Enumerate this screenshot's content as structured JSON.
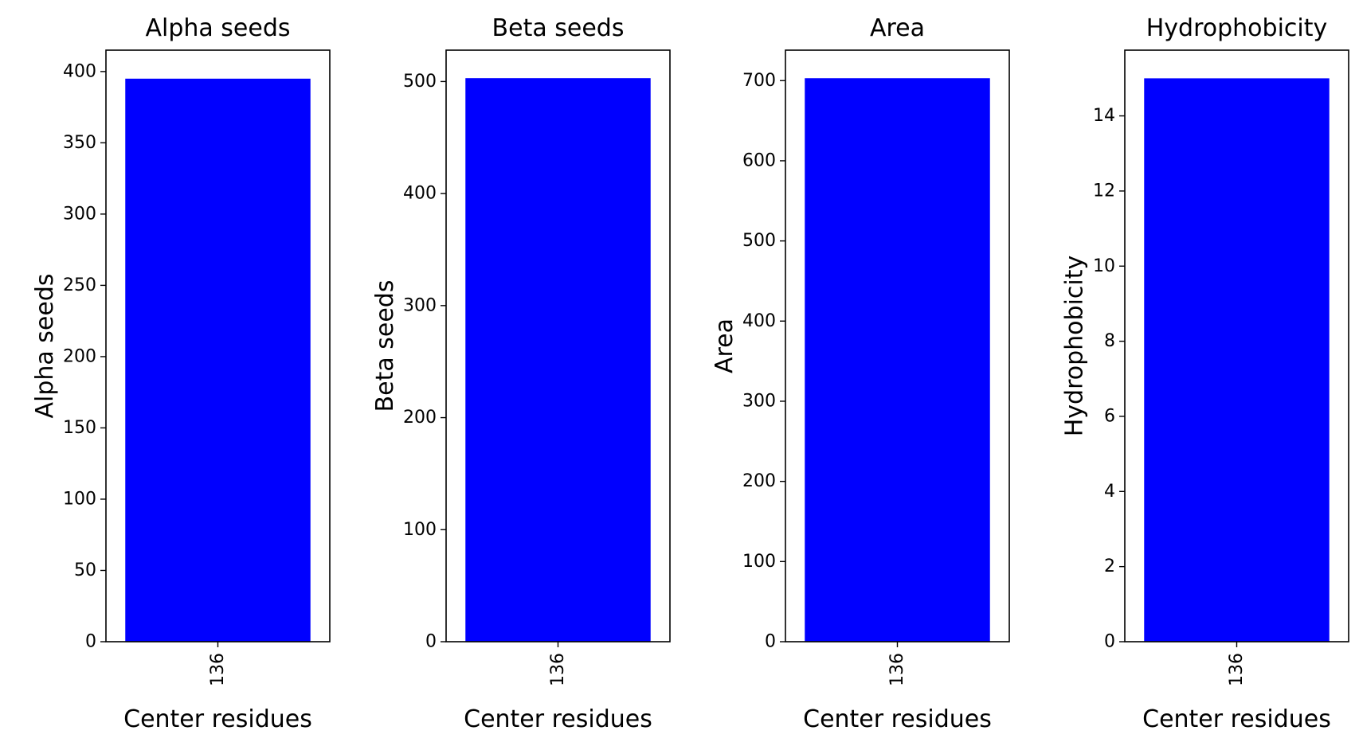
{
  "chart_data": [
    {
      "type": "bar",
      "title": "Alpha seeds",
      "xlabel": "Center residues",
      "ylabel": "Alpha seeds",
      "categories": [
        "136"
      ],
      "values": [
        395
      ],
      "ylim": [
        0,
        415
      ],
      "yticks": [
        0,
        50,
        100,
        150,
        200,
        250,
        300,
        350,
        400
      ],
      "ytick_labels": [
        "0",
        "50",
        "100",
        "150",
        "200",
        "250",
        "300",
        "350",
        "400"
      ],
      "grid": false
    },
    {
      "type": "bar",
      "title": "Beta seeds",
      "xlabel": "Center residues",
      "ylabel": "Beta seeds",
      "categories": [
        "136"
      ],
      "values": [
        503
      ],
      "ylim": [
        0,
        528
      ],
      "yticks": [
        0,
        100,
        200,
        300,
        400,
        500
      ],
      "ytick_labels": [
        "0",
        "100",
        "200",
        "300",
        "400",
        "500"
      ],
      "grid": false
    },
    {
      "type": "bar",
      "title": "Area",
      "xlabel": "Center residues",
      "ylabel": "Area",
      "categories": [
        "136"
      ],
      "values": [
        703
      ],
      "ylim": [
        0,
        738
      ],
      "yticks": [
        0,
        100,
        200,
        300,
        400,
        500,
        600,
        700
      ],
      "ytick_labels": [
        "0",
        "100",
        "200",
        "300",
        "400",
        "500",
        "600",
        "700"
      ],
      "grid": false
    },
    {
      "type": "bar",
      "title": "Hydrophobicity",
      "xlabel": "Center residues",
      "ylabel": "Hydrophobicity",
      "categories": [
        "136"
      ],
      "values": [
        15
      ],
      "ylim": [
        0,
        15.75
      ],
      "yticks": [
        0,
        2,
        4,
        6,
        8,
        10,
        12,
        14
      ],
      "ytick_labels": [
        "0",
        "2",
        "4",
        "6",
        "8",
        "10",
        "12",
        "14"
      ],
      "grid": false
    }
  ],
  "colors": {
    "bar": "#0000ff",
    "axis": "#000000",
    "background": "#ffffff"
  }
}
